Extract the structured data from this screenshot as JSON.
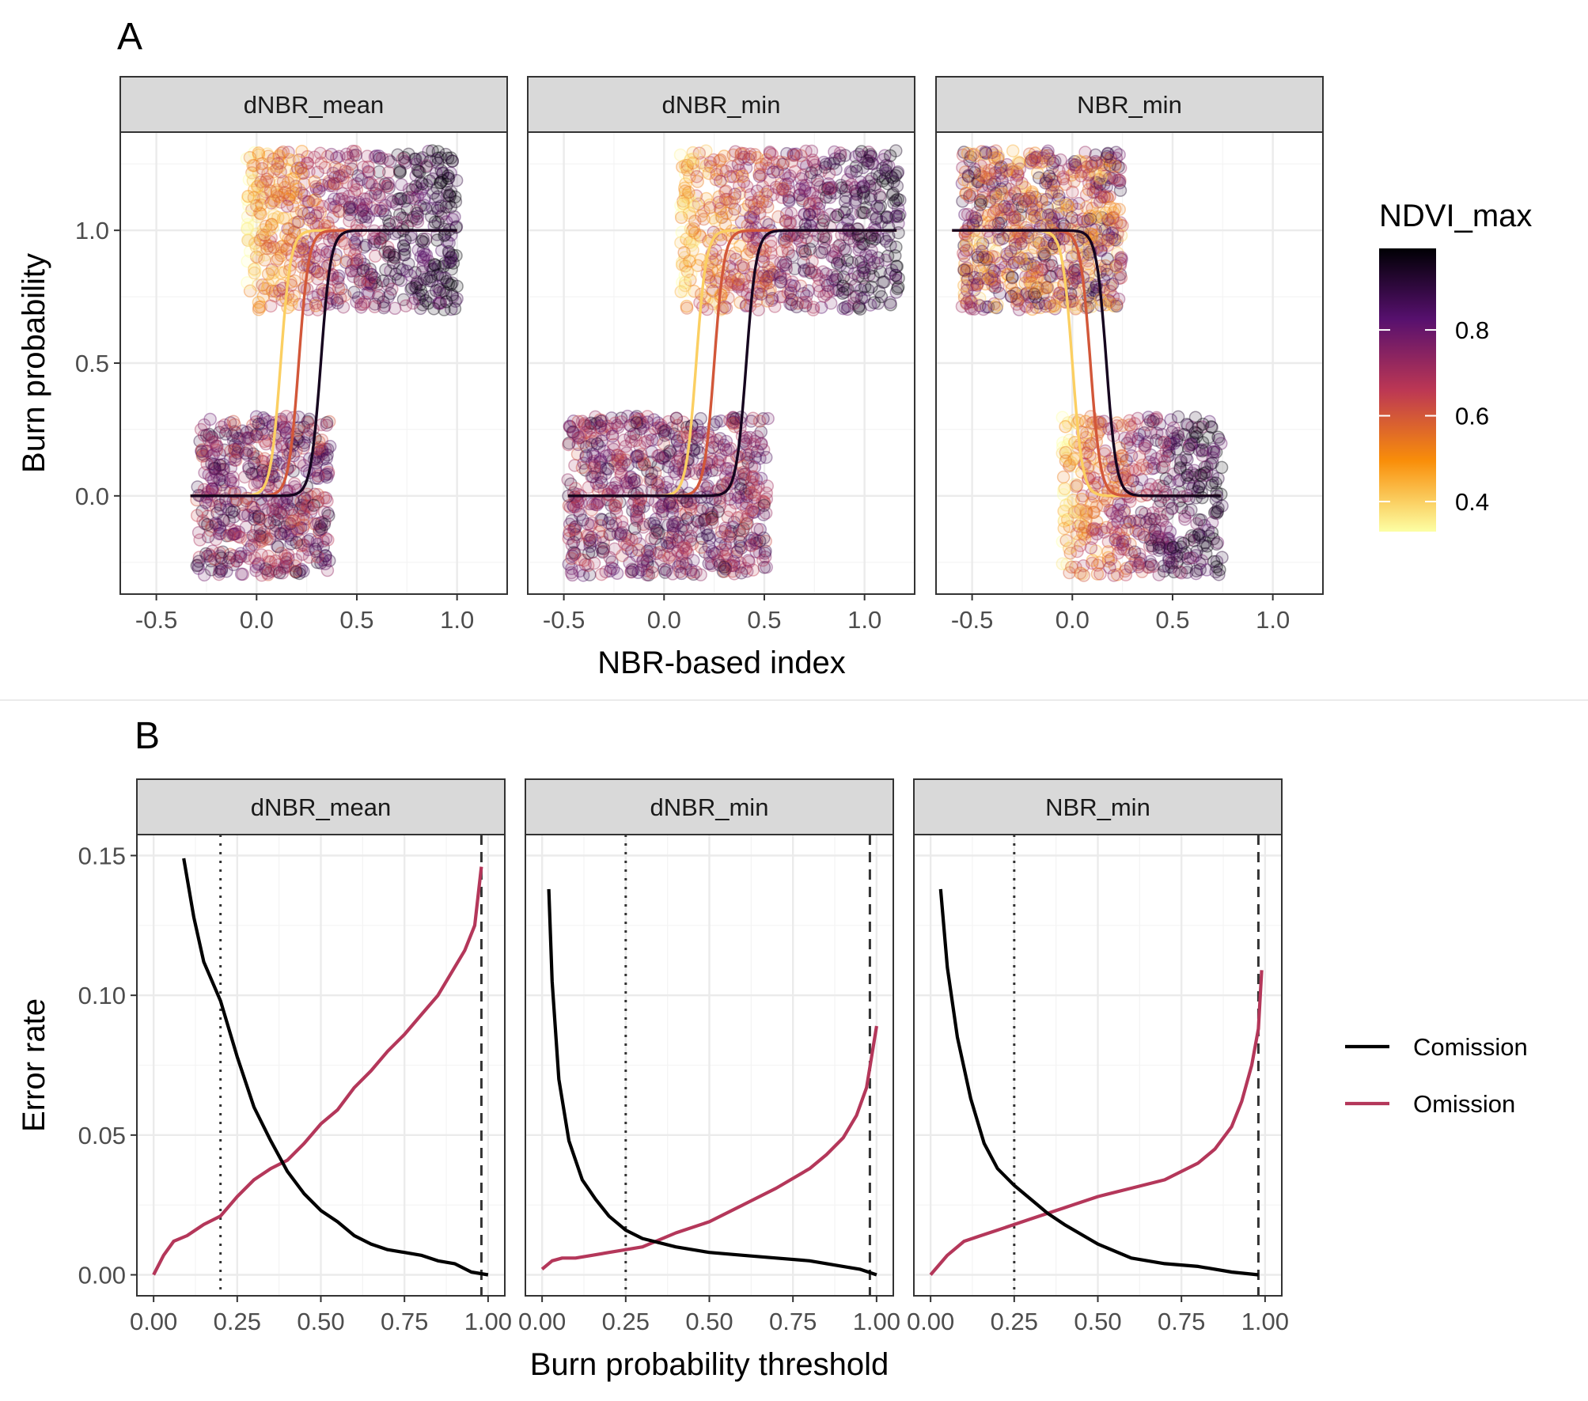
{
  "colors": {
    "inferno_stops": [
      "#fcffa4",
      "#f98e09",
      "#bc3754",
      "#57106e",
      "#000004"
    ],
    "comission": "#000000",
    "omission": "#b4375a",
    "strip_fill": "#d9d9d9",
    "grid": "#ebebeb"
  },
  "chart_data": [
    {
      "tag": "A",
      "type": "scatter",
      "facets": [
        "dNBR_mean",
        "dNBR_min",
        "NBR_min"
      ],
      "xlabel": "NBR-based index",
      "ylabel": "Burn probability",
      "xlim": [
        -0.68,
        1.25
      ],
      "ylim": [
        -0.37,
        1.37
      ],
      "x_ticks": [
        -0.5,
        0.0,
        0.5,
        1.0
      ],
      "x_tick_labels": [
        "-0.5",
        "0.0",
        "0.5",
        "1.0"
      ],
      "y_ticks": [
        0.0,
        0.5,
        1.0
      ],
      "y_tick_labels": [
        "0.0",
        "0.5",
        "1.0"
      ],
      "grid": true,
      "points": "jittered observations: burned (y≈1) and unburned (y≈0), colored by NDVI_max",
      "point_clouds": {
        "dNBR_mean": {
          "unburned_x": [
            -0.3,
            0.37
          ],
          "burned_x": [
            -0.05,
            1.0
          ]
        },
        "dNBR_min": {
          "unburned_x": [
            -0.48,
            0.52
          ],
          "burned_x": [
            0.08,
            1.18
          ]
        },
        "NBR_min": {
          "unburned_x": [
            -0.05,
            0.75
          ],
          "burned_x": [
            -0.55,
            0.25
          ]
        }
      },
      "fitted_curves": {
        "dNBR_mean": [
          {
            "ndvi": 0.4,
            "x_range": [
              -0.33,
              1.0
            ],
            "midpoint": 0.12,
            "slope": 40
          },
          {
            "ndvi": 0.6,
            "x_range": [
              -0.33,
              1.0
            ],
            "midpoint": 0.21,
            "slope": 40
          },
          {
            "ndvi": 0.95,
            "x_range": [
              -0.33,
              1.0
            ],
            "midpoint": 0.32,
            "slope": 40
          }
        ],
        "dNBR_min": [
          {
            "ndvi": 0.4,
            "x_range": [
              -0.48,
              1.16
            ],
            "midpoint": 0.16,
            "slope": 40
          },
          {
            "ndvi": 0.6,
            "x_range": [
              -0.48,
              1.16
            ],
            "midpoint": 0.25,
            "slope": 40
          },
          {
            "ndvi": 0.95,
            "x_range": [
              -0.48,
              1.16
            ],
            "midpoint": 0.41,
            "slope": 40
          }
        ],
        "NBR_min": [
          {
            "ndvi": 0.4,
            "x_range": [
              -0.6,
              0.74
            ],
            "midpoint": 0.0,
            "slope": -40
          },
          {
            "ndvi": 0.6,
            "x_range": [
              -0.6,
              0.74
            ],
            "midpoint": 0.09,
            "slope": -40
          },
          {
            "ndvi": 0.95,
            "x_range": [
              -0.6,
              0.74
            ],
            "midpoint": 0.17,
            "slope": -40
          }
        ]
      },
      "colorbar": {
        "title": "NDVI_max",
        "range": [
          0.33,
          0.99
        ],
        "ticks": [
          0.4,
          0.6,
          0.8
        ],
        "tick_labels": [
          "0.4",
          "0.6",
          "0.8"
        ]
      }
    },
    {
      "tag": "B",
      "type": "line",
      "facets": [
        "dNBR_mean",
        "dNBR_min",
        "NBR_min"
      ],
      "xlabel": "Burn probability threshold",
      "ylabel": "Error rate",
      "xlim": [
        -0.05,
        1.05
      ],
      "ylim": [
        -0.0075,
        0.1575
      ],
      "x_ticks": [
        0.0,
        0.25,
        0.5,
        0.75,
        1.0
      ],
      "x_tick_labels": [
        "0.00",
        "0.25",
        "0.50",
        "0.75",
        "1.00"
      ],
      "y_ticks": [
        0.0,
        0.05,
        0.1,
        0.15
      ],
      "y_tick_labels": [
        "0.00",
        "0.05",
        "0.10",
        "0.15"
      ],
      "grid": true,
      "series": [
        {
          "name": "Comission",
          "data": {
            "dNBR_mean": {
              "x": [
                0.09,
                0.12,
                0.15,
                0.2,
                0.25,
                0.3,
                0.35,
                0.4,
                0.45,
                0.5,
                0.55,
                0.6,
                0.65,
                0.7,
                0.75,
                0.8,
                0.85,
                0.9,
                0.95,
                1.0
              ],
              "y": [
                0.149,
                0.128,
                0.112,
                0.098,
                0.078,
                0.06,
                0.048,
                0.037,
                0.029,
                0.023,
                0.019,
                0.014,
                0.011,
                0.009,
                0.008,
                0.007,
                0.005,
                0.004,
                0.001,
                0.0
              ]
            },
            "dNBR_min": {
              "x": [
                0.02,
                0.03,
                0.05,
                0.08,
                0.12,
                0.16,
                0.2,
                0.25,
                0.3,
                0.4,
                0.5,
                0.6,
                0.7,
                0.8,
                0.9,
                0.95,
                1.0
              ],
              "y": [
                0.138,
                0.105,
                0.07,
                0.048,
                0.034,
                0.027,
                0.021,
                0.016,
                0.013,
                0.01,
                0.008,
                0.007,
                0.006,
                0.005,
                0.003,
                0.002,
                0.0
              ]
            },
            "NBR_min": {
              "x": [
                0.03,
                0.05,
                0.08,
                0.12,
                0.16,
                0.2,
                0.25,
                0.3,
                0.35,
                0.4,
                0.5,
                0.6,
                0.7,
                0.8,
                0.9,
                0.98
              ],
              "y": [
                0.138,
                0.11,
                0.085,
                0.063,
                0.047,
                0.038,
                0.032,
                0.027,
                0.022,
                0.018,
                0.011,
                0.006,
                0.004,
                0.003,
                0.001,
                0.0
              ]
            }
          }
        },
        {
          "name": "Omission",
          "data": {
            "dNBR_mean": {
              "x": [
                0.0,
                0.03,
                0.06,
                0.1,
                0.15,
                0.2,
                0.25,
                0.3,
                0.35,
                0.4,
                0.45,
                0.5,
                0.55,
                0.6,
                0.65,
                0.7,
                0.75,
                0.8,
                0.85,
                0.9,
                0.93,
                0.96,
                0.98
              ],
              "y": [
                0.0,
                0.007,
                0.012,
                0.014,
                0.018,
                0.021,
                0.028,
                0.034,
                0.038,
                0.041,
                0.047,
                0.054,
                0.059,
                0.067,
                0.073,
                0.08,
                0.086,
                0.093,
                0.1,
                0.11,
                0.116,
                0.125,
                0.146
              ]
            },
            "dNBR_min": {
              "x": [
                0.0,
                0.03,
                0.06,
                0.1,
                0.15,
                0.2,
                0.3,
                0.4,
                0.5,
                0.6,
                0.7,
                0.8,
                0.85,
                0.9,
                0.94,
                0.97,
                1.0
              ],
              "y": [
                0.002,
                0.005,
                0.006,
                0.006,
                0.007,
                0.008,
                0.01,
                0.015,
                0.019,
                0.025,
                0.031,
                0.038,
                0.043,
                0.049,
                0.057,
                0.067,
                0.089
              ]
            },
            "NBR_min": {
              "x": [
                0.0,
                0.05,
                0.1,
                0.15,
                0.2,
                0.3,
                0.4,
                0.5,
                0.6,
                0.7,
                0.8,
                0.85,
                0.9,
                0.93,
                0.96,
                0.98,
                0.99
              ],
              "y": [
                0.0,
                0.007,
                0.012,
                0.014,
                0.016,
                0.02,
                0.024,
                0.028,
                0.031,
                0.034,
                0.04,
                0.045,
                0.053,
                0.062,
                0.075,
                0.088,
                0.109
              ]
            }
          }
        }
      ],
      "vlines": {
        "dNBR_mean": {
          "dotted": 0.2,
          "dashed": 0.98
        },
        "dNBR_min": {
          "dotted": 0.25,
          "dashed": 0.98
        },
        "NBR_min": {
          "dotted": 0.25,
          "dashed": 0.98
        }
      },
      "legend_position": "right"
    }
  ]
}
